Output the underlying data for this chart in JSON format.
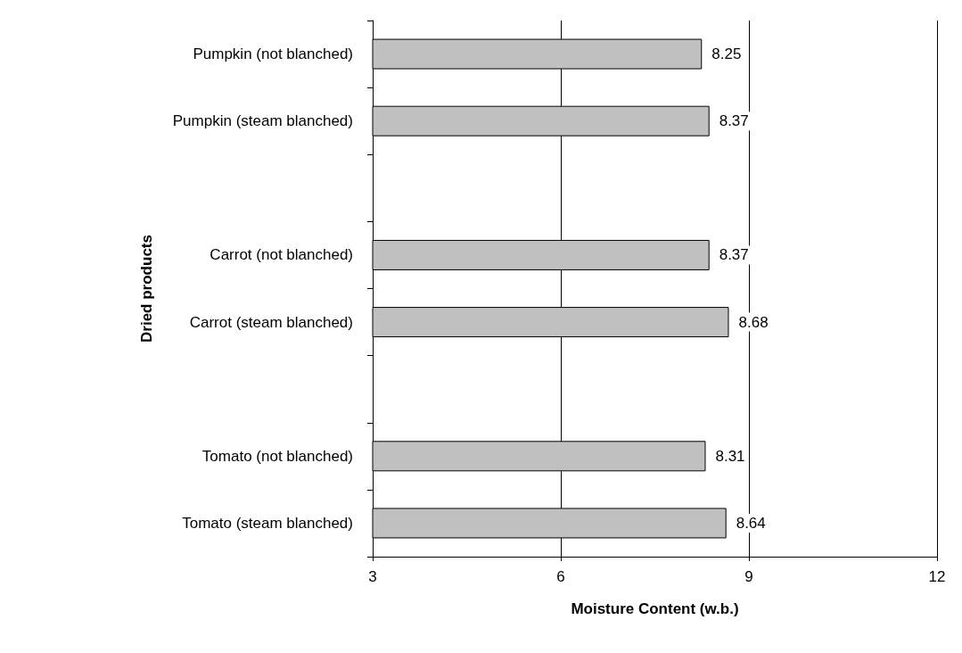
{
  "chart_data": {
    "type": "bar",
    "orientation": "horizontal",
    "xlabel": "Moisture Content (w.b.)",
    "ylabel": "Dried products",
    "categories": [
      "Pumpkin (not blanched)",
      "Pumpkin (steam blanched)",
      null,
      "Carrot (not blanched)",
      "Carrot (steam blanched)",
      null,
      "Tomato (not blanched)",
      "Tomato (steam blanched)"
    ],
    "values": [
      8.25,
      8.37,
      null,
      8.37,
      8.68,
      null,
      8.31,
      8.64
    ],
    "color": "#c0c0c0",
    "data_labels": true,
    "xlim": [
      3,
      12
    ],
    "xticks": [
      3,
      6,
      9,
      12
    ],
    "grid": "x"
  }
}
